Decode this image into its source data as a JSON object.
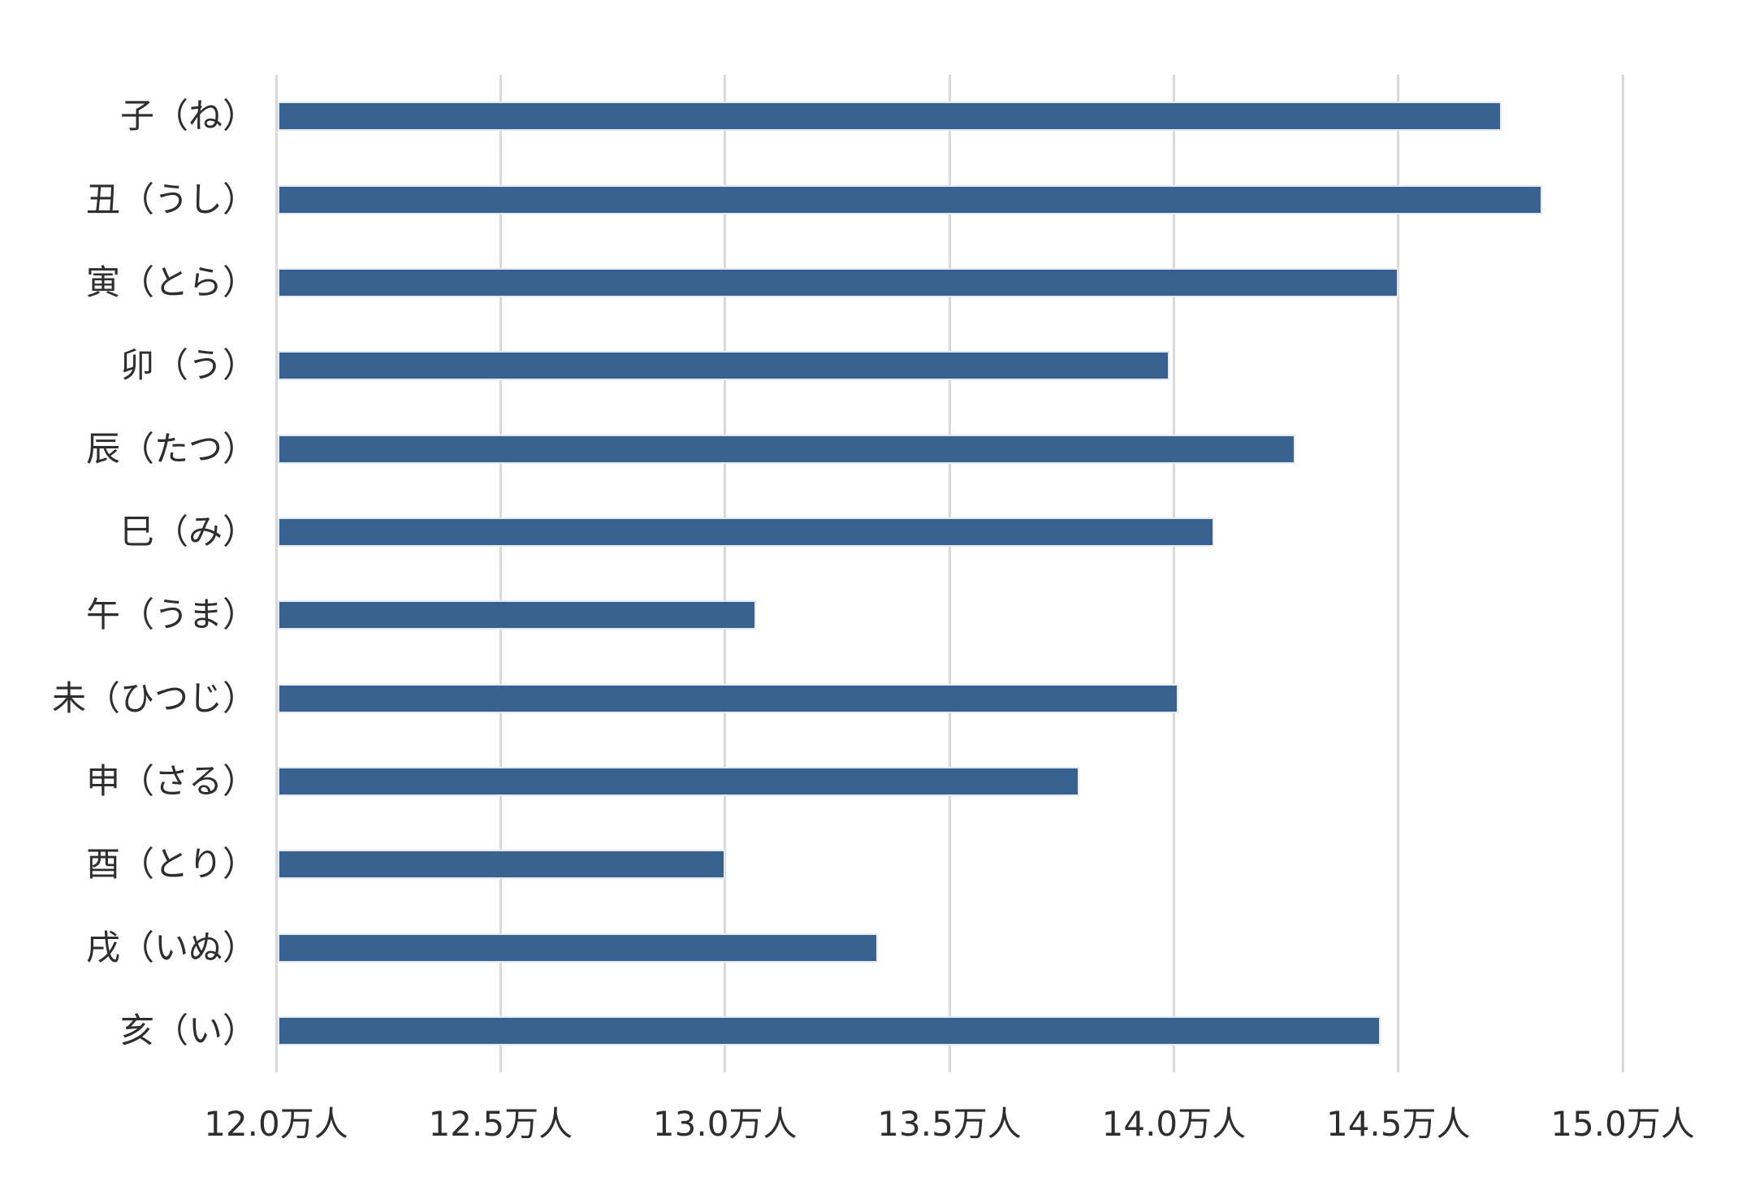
{
  "chart_data": {
    "type": "bar",
    "orientation": "horizontal",
    "title": "",
    "xlabel": "",
    "ylabel": "",
    "unit": "万人",
    "categories": [
      "子（ね）",
      "丑（うし）",
      "寅（とら）",
      "卯（う）",
      "辰（たつ）",
      "巳（み）",
      "午（うま）",
      "未（ひつじ）",
      "申（さる）",
      "酉（とり）",
      "戌（いぬ）",
      "亥（い）"
    ],
    "values": [
      14.73,
      14.82,
      14.5,
      13.99,
      14.27,
      14.09,
      13.07,
      14.01,
      13.79,
      13.0,
      13.34,
      14.46
    ],
    "xlim": [
      12.0,
      15.0
    ],
    "x_tick_values": [
      12.0,
      12.5,
      13.0,
      13.5,
      14.0,
      14.5,
      15.0
    ],
    "x_tick_labels": [
      "12.0万人",
      "12.5万人",
      "13.0万人",
      "13.5万人",
      "14.0万人",
      "14.5万人",
      "15.0万人"
    ],
    "grid": true,
    "legend": false,
    "colors": {
      "bar": "#376290",
      "bar_edge": "#e3e9f2",
      "gridline": "#d9d9d9",
      "tick_text": "#2e2e2e",
      "background": "#ffffff"
    }
  }
}
